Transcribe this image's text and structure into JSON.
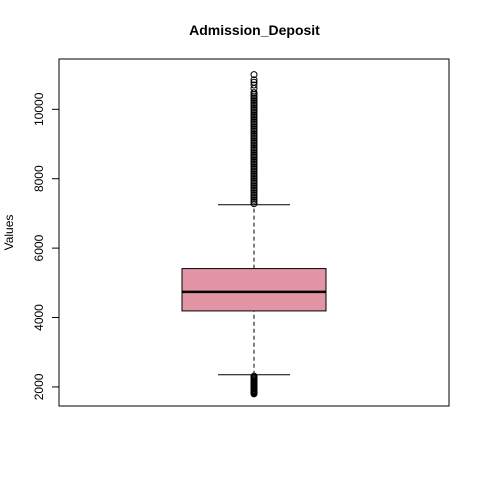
{
  "chart_data": {
    "type": "boxplot",
    "title": "Admission_Deposit",
    "xlabel": "",
    "ylabel": "Values",
    "ylim": [
      1450,
      11450
    ],
    "yticks": [
      2000,
      4000,
      6000,
      8000,
      10000
    ],
    "grid": false,
    "box": {
      "fill": "#e495a5",
      "min_whisker": 2350,
      "q1": 4190,
      "median": 4740,
      "q3": 5410,
      "max_whisker": 7250
    },
    "outliers_low": [
      1800,
      1820,
      1840,
      1860,
      1880,
      1900,
      1920,
      1950,
      1980,
      2010,
      2040,
      2070,
      2100,
      2130,
      2160,
      2190,
      2220,
      2250,
      2280,
      2310
    ],
    "outliers_high": [
      7280,
      7330,
      7380,
      7430,
      7480,
      7530,
      7580,
      7630,
      7680,
      7730,
      7780,
      7830,
      7880,
      7930,
      7980,
      8030,
      8080,
      8130,
      8180,
      8230,
      8280,
      8330,
      8380,
      8430,
      8480,
      8530,
      8580,
      8630,
      8680,
      8730,
      8780,
      8830,
      8880,
      8930,
      8980,
      9030,
      9080,
      9130,
      9180,
      9230,
      9280,
      9330,
      9380,
      9430,
      9480,
      9530,
      9580,
      9630,
      9680,
      9730,
      9780,
      9830,
      9880,
      9930,
      9980,
      10030,
      10080,
      10130,
      10180,
      10230,
      10280,
      10330,
      10380,
      10430,
      10480,
      10600,
      10700,
      10780,
      10850,
      11000
    ]
  }
}
